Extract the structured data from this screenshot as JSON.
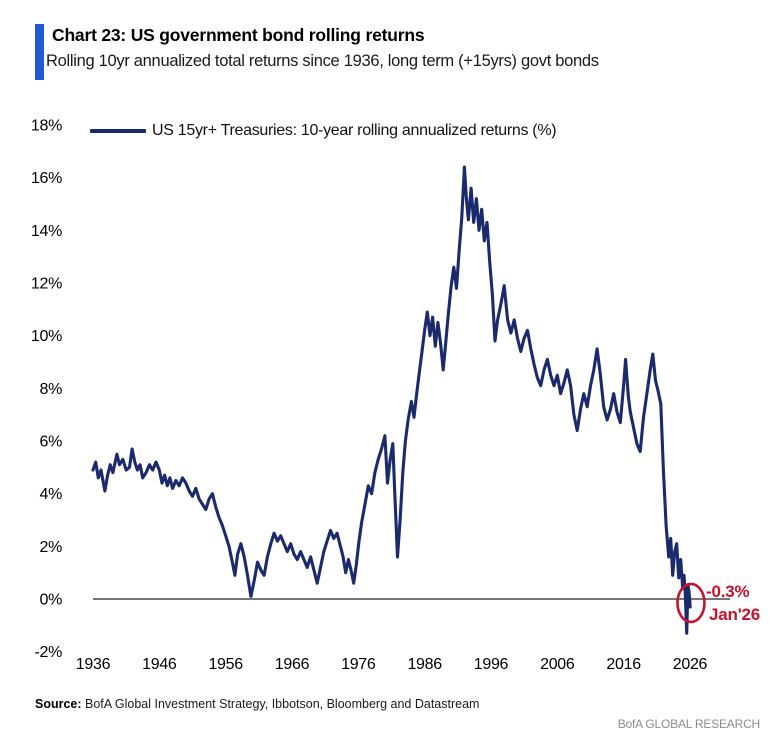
{
  "header": {
    "title": "Chart 23: US government bond rolling returns",
    "subtitle": "Rolling 10yr annualized total returns since 1936, long term (+15yrs) govt bonds",
    "accent_color": "#1F5BD5"
  },
  "chart_data": {
    "type": "line",
    "title": "US government bond rolling returns",
    "legend_position": "top-left",
    "grid": false,
    "xlim": [
      1936,
      2032
    ],
    "ylim": [
      -2,
      18
    ],
    "x_tick_values": [
      1936,
      1946,
      1956,
      1966,
      1976,
      1986,
      1996,
      2006,
      2016,
      2026
    ],
    "x_tick_labels": [
      "1936",
      "1946",
      "1956",
      "1966",
      "1976",
      "1986",
      "1996",
      "2006",
      "2016",
      "2026"
    ],
    "y_tick_values": [
      18,
      16,
      14,
      12,
      10,
      8,
      6,
      4,
      2,
      0,
      -2
    ],
    "y_tick_labels": [
      "18%",
      "16%",
      "14%",
      "12%",
      "10%",
      "8%",
      "6%",
      "4%",
      "2%",
      "0%",
      "-2%"
    ],
    "zero_line": {
      "shown": true,
      "color": "#636363"
    },
    "series": [
      {
        "name": "US 15yr+ Treasuries: 10-year rolling annualized returns (%)",
        "color": "#1A2A6C",
        "points": [
          [
            1936.0,
            4.9
          ],
          [
            1936.4,
            5.2
          ],
          [
            1936.8,
            4.6
          ],
          [
            1937.2,
            4.9
          ],
          [
            1937.8,
            4.1
          ],
          [
            1938.2,
            4.7
          ],
          [
            1938.6,
            5.1
          ],
          [
            1939.0,
            4.8
          ],
          [
            1939.6,
            5.5
          ],
          [
            1940.0,
            5.1
          ],
          [
            1940.5,
            5.3
          ],
          [
            1941.0,
            4.9
          ],
          [
            1941.5,
            5.0
          ],
          [
            1941.9,
            5.7
          ],
          [
            1942.3,
            5.2
          ],
          [
            1942.7,
            4.9
          ],
          [
            1943.1,
            5.1
          ],
          [
            1943.5,
            4.6
          ],
          [
            1944.0,
            4.8
          ],
          [
            1944.5,
            5.1
          ],
          [
            1945.0,
            4.9
          ],
          [
            1945.5,
            5.2
          ],
          [
            1946.0,
            4.9
          ],
          [
            1946.4,
            4.4
          ],
          [
            1946.8,
            4.7
          ],
          [
            1947.2,
            4.3
          ],
          [
            1947.6,
            4.6
          ],
          [
            1948.0,
            4.2
          ],
          [
            1948.5,
            4.5
          ],
          [
            1949.0,
            4.3
          ],
          [
            1949.5,
            4.6
          ],
          [
            1950.0,
            4.4
          ],
          [
            1950.5,
            4.1
          ],
          [
            1951.0,
            3.9
          ],
          [
            1951.5,
            4.2
          ],
          [
            1952.0,
            3.8
          ],
          [
            1952.5,
            3.6
          ],
          [
            1953.0,
            3.4
          ],
          [
            1953.5,
            3.8
          ],
          [
            1954.0,
            4.0
          ],
          [
            1954.5,
            3.5
          ],
          [
            1955.0,
            3.1
          ],
          [
            1955.5,
            2.8
          ],
          [
            1956.0,
            2.4
          ],
          [
            1956.5,
            2.0
          ],
          [
            1957.0,
            1.4
          ],
          [
            1957.4,
            0.9
          ],
          [
            1957.8,
            1.7
          ],
          [
            1958.3,
            2.1
          ],
          [
            1958.8,
            1.6
          ],
          [
            1959.3,
            0.9
          ],
          [
            1959.8,
            0.1
          ],
          [
            1960.3,
            0.7
          ],
          [
            1960.8,
            1.4
          ],
          [
            1961.3,
            1.1
          ],
          [
            1961.8,
            0.9
          ],
          [
            1962.3,
            1.6
          ],
          [
            1962.8,
            2.1
          ],
          [
            1963.3,
            2.5
          ],
          [
            1963.8,
            2.2
          ],
          [
            1964.3,
            2.4
          ],
          [
            1964.8,
            2.1
          ],
          [
            1965.3,
            1.8
          ],
          [
            1965.8,
            2.1
          ],
          [
            1966.3,
            1.7
          ],
          [
            1966.8,
            1.5
          ],
          [
            1967.3,
            1.8
          ],
          [
            1967.8,
            1.5
          ],
          [
            1968.3,
            1.2
          ],
          [
            1968.8,
            1.6
          ],
          [
            1969.3,
            1.1
          ],
          [
            1969.8,
            0.6
          ],
          [
            1970.3,
            1.2
          ],
          [
            1970.8,
            1.8
          ],
          [
            1971.3,
            2.2
          ],
          [
            1971.8,
            2.6
          ],
          [
            1972.3,
            2.3
          ],
          [
            1972.8,
            2.5
          ],
          [
            1973.3,
            2.0
          ],
          [
            1973.7,
            1.6
          ],
          [
            1974.1,
            1.0
          ],
          [
            1974.5,
            1.5
          ],
          [
            1974.9,
            1.1
          ],
          [
            1975.3,
            0.6
          ],
          [
            1975.7,
            1.3
          ],
          [
            1976.1,
            2.2
          ],
          [
            1976.5,
            2.9
          ],
          [
            1977.0,
            3.6
          ],
          [
            1977.5,
            4.3
          ],
          [
            1978.0,
            4.0
          ],
          [
            1978.5,
            4.8
          ],
          [
            1979.0,
            5.3
          ],
          [
            1979.5,
            5.7
          ],
          [
            1980.0,
            6.2
          ],
          [
            1980.4,
            4.4
          ],
          [
            1980.8,
            5.3
          ],
          [
            1981.2,
            5.9
          ],
          [
            1981.5,
            4.0
          ],
          [
            1981.9,
            1.6
          ],
          [
            1982.3,
            3.0
          ],
          [
            1982.7,
            4.8
          ],
          [
            1983.1,
            6.0
          ],
          [
            1983.5,
            6.8
          ],
          [
            1984.0,
            7.5
          ],
          [
            1984.4,
            6.9
          ],
          [
            1984.8,
            7.8
          ],
          [
            1985.2,
            8.6
          ],
          [
            1985.6,
            9.4
          ],
          [
            1986.0,
            10.2
          ],
          [
            1986.4,
            10.9
          ],
          [
            1986.8,
            10.0
          ],
          [
            1987.2,
            10.7
          ],
          [
            1987.6,
            9.6
          ],
          [
            1988.0,
            10.5
          ],
          [
            1988.4,
            9.7
          ],
          [
            1988.8,
            8.7
          ],
          [
            1989.2,
            9.8
          ],
          [
            1989.6,
            10.9
          ],
          [
            1990.0,
            11.9
          ],
          [
            1990.4,
            12.6
          ],
          [
            1990.8,
            11.8
          ],
          [
            1991.2,
            13.2
          ],
          [
            1991.6,
            14.5
          ],
          [
            1992.0,
            16.4
          ],
          [
            1992.3,
            15.2
          ],
          [
            1992.6,
            14.4
          ],
          [
            1993.0,
            15.6
          ],
          [
            1993.4,
            14.3
          ],
          [
            1993.8,
            15.2
          ],
          [
            1994.2,
            14.0
          ],
          [
            1994.6,
            14.8
          ],
          [
            1995.0,
            13.6
          ],
          [
            1995.4,
            14.3
          ],
          [
            1995.8,
            12.8
          ],
          [
            1996.2,
            11.6
          ],
          [
            1996.6,
            9.8
          ],
          [
            1997.0,
            10.6
          ],
          [
            1997.5,
            11.2
          ],
          [
            1998.0,
            11.9
          ],
          [
            1998.5,
            10.6
          ],
          [
            1999.0,
            10.1
          ],
          [
            1999.5,
            10.6
          ],
          [
            2000.0,
            9.9
          ],
          [
            2000.5,
            9.4
          ],
          [
            2001.0,
            9.9
          ],
          [
            2001.5,
            10.2
          ],
          [
            2002.0,
            9.5
          ],
          [
            2002.5,
            8.9
          ],
          [
            2003.0,
            8.4
          ],
          [
            2003.5,
            8.1
          ],
          [
            2004.0,
            8.7
          ],
          [
            2004.5,
            9.1
          ],
          [
            2005.0,
            8.5
          ],
          [
            2005.5,
            8.1
          ],
          [
            2006.0,
            8.5
          ],
          [
            2006.5,
            7.8
          ],
          [
            2007.0,
            8.2
          ],
          [
            2007.5,
            8.7
          ],
          [
            2008.0,
            8.1
          ],
          [
            2008.5,
            7.0
          ],
          [
            2009.0,
            6.4
          ],
          [
            2009.5,
            7.2
          ],
          [
            2010.0,
            7.8
          ],
          [
            2010.5,
            7.3
          ],
          [
            2011.0,
            8.1
          ],
          [
            2011.5,
            8.7
          ],
          [
            2012.0,
            9.5
          ],
          [
            2012.5,
            8.5
          ],
          [
            2013.0,
            7.3
          ],
          [
            2013.5,
            6.8
          ],
          [
            2014.0,
            7.2
          ],
          [
            2014.5,
            7.8
          ],
          [
            2015.0,
            7.1
          ],
          [
            2015.5,
            6.7
          ],
          [
            2016.0,
            8.1
          ],
          [
            2016.3,
            9.1
          ],
          [
            2016.7,
            7.7
          ],
          [
            2017.0,
            7.1
          ],
          [
            2017.5,
            6.5
          ],
          [
            2018.0,
            5.9
          ],
          [
            2018.5,
            5.6
          ],
          [
            2019.0,
            6.9
          ],
          [
            2019.5,
            7.8
          ],
          [
            2020.0,
            8.7
          ],
          [
            2020.4,
            9.3
          ],
          [
            2020.8,
            8.3
          ],
          [
            2021.2,
            7.9
          ],
          [
            2021.6,
            7.4
          ],
          [
            2022.0,
            4.9
          ],
          [
            2022.4,
            2.8
          ],
          [
            2022.8,
            1.6
          ],
          [
            2023.1,
            2.3
          ],
          [
            2023.4,
            0.9
          ],
          [
            2023.7,
            1.8
          ],
          [
            2024.0,
            2.1
          ],
          [
            2024.3,
            0.8
          ],
          [
            2024.6,
            1.5
          ],
          [
            2024.9,
            0.4
          ],
          [
            2025.1,
            0.9
          ],
          [
            2025.3,
            0.2
          ],
          [
            2025.5,
            -1.3
          ],
          [
            2025.7,
            0.5
          ],
          [
            2025.85,
            0.3
          ],
          [
            2026.04,
            -0.3
          ]
        ]
      }
    ],
    "annotation": {
      "value_label": "-0.3%",
      "date_label": "Jan'26",
      "x": 2026.0,
      "y": -0.3,
      "color": "#C4122F"
    }
  },
  "footer": {
    "source_label": "Source:",
    "source_text": " BofA Global Investment Strategy, Ibbotson, Bloomberg and Datastream",
    "brand": "BofA GLOBAL RESEARCH"
  }
}
